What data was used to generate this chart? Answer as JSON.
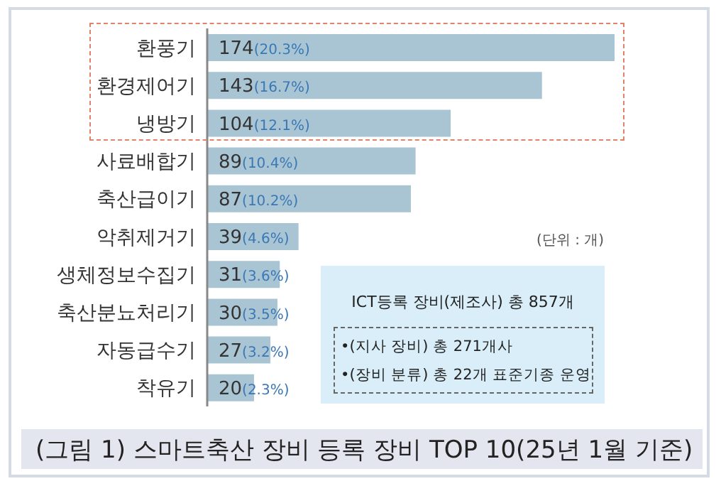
{
  "chart_data": {
    "type": "bar",
    "orientation": "horizontal",
    "title": "(그림 1) 스마트축산 장비 등록 장비 TOP 10(25년 1월 기준)",
    "categories": [
      "환풍기",
      "환경제어기",
      "냉방기",
      "사료배합기",
      "축산급이기",
      "악취제거기",
      "생체정보수집기",
      "축산분뇨처리기",
      "자동급수기",
      "착유기"
    ],
    "values": [
      174,
      143,
      104,
      89,
      87,
      39,
      31,
      30,
      27,
      20
    ],
    "value_labels": [
      "174(20.3%)",
      "143(16.7%)",
      "104(12.1%)",
      "89(10.4%)",
      "87(10.2%)",
      "39(4.6%)",
      "31(3.6%)",
      "30(3.5%)",
      "27(3.2%)",
      "20(2.3%)"
    ],
    "color": "#a9c5d4",
    "grid": false,
    "legend": false,
    "annotations": [
      "(단위 : 개)",
      "ICT등록 장비(제조사) 총 857개",
      "•(지사 장비) 총 271개사",
      "•(장비 분류) 총 22개 표준기종 운영"
    ]
  }
}
